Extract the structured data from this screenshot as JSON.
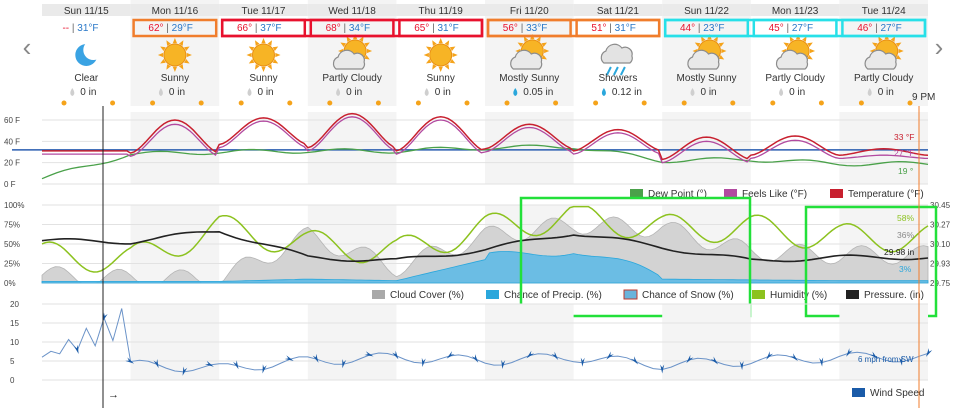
{
  "nav": {
    "prev_label": "‹",
    "next_label": "›"
  },
  "days": [
    {
      "label": "Sun 11/15",
      "high": "--",
      "low": "31°F",
      "cond": "Clear",
      "icon": "moon-icon",
      "precip": "0 in",
      "highlight": ""
    },
    {
      "label": "Mon 11/16",
      "high": "62°",
      "low": "29°F",
      "cond": "Sunny",
      "icon": "sun-icon",
      "precip": "0 in",
      "highlight": "#f07d2c"
    },
    {
      "label": "Tue 11/17",
      "high": "66°",
      "low": "37°F",
      "cond": "Sunny",
      "icon": "sun-icon",
      "precip": "0 in",
      "highlight": "#e8112d"
    },
    {
      "label": "Wed 11/18",
      "high": "68°",
      "low": "34°F",
      "cond": "Partly Cloudy",
      "icon": "partly-cloudy-icon",
      "precip": "0 in",
      "highlight": "#e8112d"
    },
    {
      "label": "Thu 11/19",
      "high": "65°",
      "low": "31°F",
      "cond": "Sunny",
      "icon": "sun-icon",
      "precip": "0 in",
      "highlight": "#e8112d"
    },
    {
      "label": "Fri 11/20",
      "high": "56°",
      "low": "33°F",
      "cond": "Mostly Sunny",
      "icon": "partly-cloudy-icon",
      "precip": "0.05 in",
      "highlight": "#f07d2c"
    },
    {
      "label": "Sat 11/21",
      "high": "51°",
      "low": "31°F",
      "cond": "Showers",
      "icon": "showers-icon",
      "precip": "0.12 in",
      "highlight": "#f07d2c"
    },
    {
      "label": "Sun 11/22",
      "high": "44°",
      "low": "23°F",
      "cond": "Mostly Sunny",
      "icon": "partly-cloudy-icon",
      "precip": "0 in",
      "highlight": "#27e0e8"
    },
    {
      "label": "Mon 11/23",
      "high": "45°",
      "low": "27°F",
      "cond": "Partly Cloudy",
      "icon": "partly-cloudy-icon",
      "precip": "0 in",
      "highlight": "#27e0e8"
    },
    {
      "label": "Tue 11/24",
      "high": "46°",
      "low": "27°F",
      "cond": "Partly Cloudy",
      "icon": "partly-cloudy-icon",
      "precip": "0 in",
      "highlight": "#27e0e8"
    }
  ],
  "colors": {
    "temperature": "#c8202f",
    "feels_like": "#b24aa0",
    "dew_point": "#4aa14a",
    "freezing": "#2a5db0",
    "cloud": "#a9a9a9",
    "precip": "#2aa7dc",
    "humidity": "#8cc21f",
    "pressure": "#222222",
    "wind": "#1a5ba8",
    "hi_text": "#e8112d",
    "lo_text": "#2a78c8",
    "annotation_green": "#22e03a",
    "now_marker": "#f07d2c"
  },
  "chart_data": [
    {
      "type": "line",
      "title": "",
      "xlabel": "",
      "ylabel": "",
      "ylim": [
        0,
        60
      ],
      "y_ticks": [
        "60 F",
        "40 F",
        "20 F",
        "0 F"
      ],
      "x": [
        "Sun 11/15",
        "Mon 11/16",
        "Tue 11/17",
        "Wed 11/18",
        "Thu 11/19",
        "Fri 11/20",
        "Sat 11/21",
        "Sun 11/22",
        "Mon 11/23",
        "Tue 11/24"
      ],
      "series": [
        {
          "name": "Temperature (°F)",
          "values": [
            31,
            60,
            62,
            66,
            63,
            56,
            51,
            44,
            45,
            33
          ]
        },
        {
          "name": "Feels Like (°F)",
          "values": [
            28,
            56,
            59,
            63,
            60,
            53,
            48,
            40,
            41,
            27
          ]
        },
        {
          "name": "Dew Point (°)",
          "values": [
            5,
            28,
            30,
            31,
            31,
            34,
            35,
            22,
            23,
            19
          ]
        }
      ],
      "end_labels": [
        "33 °F",
        "27 °F",
        "19 °"
      ],
      "legend": [
        "Dew Point (°)",
        "Feels Like (°F)",
        "Temperature (°F)"
      ],
      "legend_position": "bottom-right",
      "time_label": "9 PM"
    },
    {
      "type": "line",
      "title": "",
      "ylim": [
        0,
        100
      ],
      "y_ticks": [
        "100%",
        "75%",
        "50%",
        "25%",
        "0%"
      ],
      "y2_ticks": [
        "30.45",
        "30.27",
        "30.10",
        "29.93",
        "29.75"
      ],
      "x": [
        "Sun 11/15",
        "Mon 11/16",
        "Tue 11/17",
        "Wed 11/18",
        "Thu 11/19",
        "Fri 11/20",
        "Sat 11/21",
        "Sun 11/22",
        "Mon 11/23",
        "Tue 11/24"
      ],
      "series": [
        {
          "name": "Cloud Cover (%)",
          "values": [
            10,
            5,
            5,
            60,
            20,
            60,
            75,
            70,
            40,
            36
          ]
        },
        {
          "name": "Chance of Precip. (%)",
          "values": [
            2,
            2,
            2,
            5,
            3,
            30,
            45,
            5,
            4,
            3
          ]
        },
        {
          "name": "Humidity (%)",
          "values": [
            35,
            30,
            70,
            50,
            40,
            70,
            85,
            70,
            70,
            58
          ]
        },
        {
          "name": "Pressure (in)",
          "values": [
            30.13,
            30.12,
            30.22,
            29.98,
            29.95,
            30.05,
            30.2,
            30.07,
            29.95,
            29.98
          ]
        }
      ],
      "end_labels": [
        "58%",
        "36%",
        "29.98 in",
        "3%"
      ],
      "legend": [
        "Cloud Cover (%)",
        "Chance of Precip. (%)",
        "Chance of Snow (%)",
        "Humidity (%)",
        "Pressure. (in)"
      ],
      "legend_position": "bottom"
    },
    {
      "type": "line",
      "title": "",
      "ylim": [
        0,
        20
      ],
      "y_ticks": [
        "20",
        "15",
        "10",
        "5",
        "0"
      ],
      "x": [
        "Sun 11/15",
        "Mon 11/16",
        "Tue 11/17",
        "Wed 11/18",
        "Thu 11/19",
        "Fri 11/20",
        "Sat 11/21",
        "Sun 11/22",
        "Mon 11/23",
        "Tue 11/24"
      ],
      "series": [
        {
          "name": "Wind Speed",
          "values": [
            16,
            4,
            3,
            5,
            6,
            5,
            6,
            4,
            5,
            6
          ]
        }
      ],
      "end_labels": [
        "6 mph from SW"
      ],
      "legend": [
        "Wind Speed"
      ],
      "legend_position": "bottom-right",
      "now_arrow": "→"
    }
  ]
}
